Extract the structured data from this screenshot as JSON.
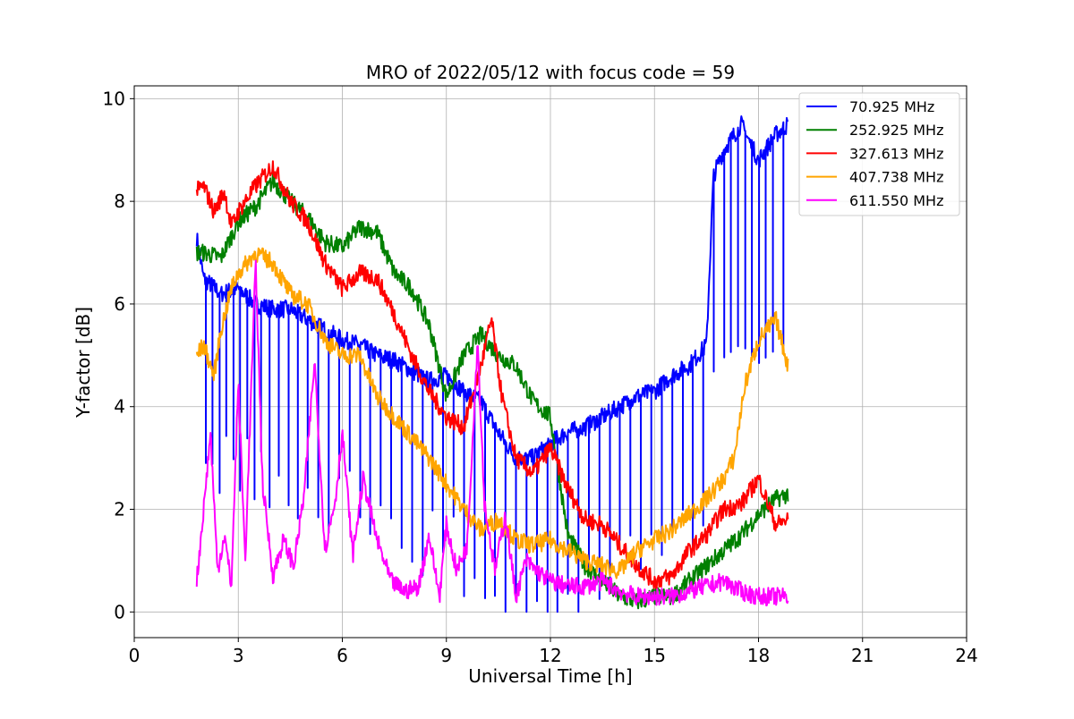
{
  "chart_data": {
    "type": "line",
    "title": "MRO of 2022/05/12 with focus code = 59",
    "xlabel": "Universal Time [h]",
    "ylabel": "Y-factor [dB]",
    "xlim": [
      0,
      24
    ],
    "ylim": [
      -0.5,
      10.25
    ],
    "xticks": [
      0,
      3,
      6,
      9,
      12,
      15,
      18,
      21,
      24
    ],
    "yticks": [
      0,
      2,
      4,
      6,
      8,
      10
    ],
    "grid": true,
    "legend_position": "top-right",
    "series": [
      {
        "name": " 70.925 MHz",
        "color": "#0000ff",
        "x": [
          1.8,
          2.0,
          2.5,
          3.0,
          3.5,
          4.0,
          4.5,
          5.0,
          5.5,
          6.0,
          6.5,
          7.0,
          7.5,
          8.0,
          8.5,
          9.0,
          9.5,
          10.0,
          10.5,
          11.0,
          11.5,
          12.0,
          12.5,
          13.0,
          13.5,
          14.0,
          14.5,
          15.0,
          15.5,
          16.0,
          16.5,
          16.7,
          17.0,
          17.5,
          18.0,
          18.5,
          18.85
        ],
        "y": [
          7.3,
          6.5,
          6.2,
          6.3,
          6.0,
          5.9,
          5.9,
          5.7,
          5.5,
          5.3,
          5.2,
          5.0,
          4.9,
          4.7,
          4.5,
          4.6,
          4.3,
          4.1,
          3.5,
          3.0,
          3.0,
          3.3,
          3.5,
          3.6,
          3.8,
          4.0,
          4.2,
          4.3,
          4.6,
          4.8,
          5.2,
          8.5,
          9.0,
          9.5,
          8.8,
          9.3,
          9.5
        ],
        "dips": [
          2.05,
          2.25,
          2.45,
          2.65,
          2.85,
          3.05,
          3.25,
          3.45,
          3.65,
          3.9,
          4.15,
          4.45,
          4.7,
          5.0,
          5.3,
          5.6,
          5.9,
          6.2,
          6.5,
          6.8,
          7.1,
          7.4,
          7.7,
          8.0,
          8.3,
          8.6,
          8.9,
          9.2,
          9.5,
          9.8,
          10.1,
          10.4,
          10.7,
          11.0,
          11.3,
          11.6,
          11.9,
          12.2,
          12.5,
          12.8,
          13.1,
          13.4,
          13.7,
          14.0,
          14.3,
          14.6,
          14.9,
          15.2,
          15.5,
          15.8,
          16.1,
          16.4,
          16.7,
          17.0,
          17.2,
          17.4,
          17.6,
          17.8,
          18.0,
          18.2,
          18.4,
          18.7
        ]
      },
      {
        "name": "252.925 MHz",
        "color": "#008000",
        "x": [
          1.8,
          2.0,
          2.5,
          3.0,
          3.5,
          4.0,
          4.5,
          5.0,
          5.5,
          6.0,
          6.5,
          7.0,
          7.5,
          8.0,
          8.5,
          9.0,
          9.5,
          10.0,
          10.5,
          11.0,
          11.5,
          12.0,
          12.5,
          13.0,
          13.5,
          14.0,
          14.5,
          15.0,
          15.5,
          16.0,
          16.5,
          17.0,
          17.5,
          18.0,
          18.5,
          18.85
        ],
        "y": [
          7.0,
          7.0,
          6.9,
          7.6,
          7.9,
          8.4,
          8.0,
          7.7,
          7.2,
          7.1,
          7.5,
          7.4,
          6.6,
          6.3,
          5.6,
          4.2,
          5.0,
          5.4,
          5.0,
          4.8,
          4.1,
          3.8,
          1.5,
          0.9,
          0.6,
          0.3,
          0.2,
          0.3,
          0.3,
          0.6,
          0.9,
          1.2,
          1.5,
          1.9,
          2.2,
          2.3
        ]
      },
      {
        "name": "327.613 MHz",
        "color": "#ff0000",
        "x": [
          1.8,
          2.0,
          2.3,
          2.6,
          2.8,
          3.0,
          3.5,
          4.0,
          4.5,
          5.0,
          5.5,
          6.0,
          6.5,
          7.0,
          7.5,
          8.0,
          8.5,
          9.0,
          9.5,
          10.0,
          10.3,
          10.6,
          11.0,
          11.5,
          12.0,
          12.5,
          13.0,
          13.5,
          14.0,
          14.5,
          15.0,
          15.5,
          16.0,
          16.5,
          17.0,
          17.5,
          18.0,
          18.5,
          18.85
        ],
        "y": [
          8.2,
          8.3,
          7.8,
          8.2,
          7.5,
          7.8,
          8.3,
          8.7,
          8.0,
          7.6,
          6.8,
          6.3,
          6.6,
          6.5,
          5.8,
          5.0,
          4.3,
          3.8,
          3.6,
          4.8,
          5.7,
          4.2,
          3.0,
          2.7,
          3.2,
          2.4,
          1.8,
          1.7,
          1.3,
          0.9,
          0.6,
          0.7,
          1.2,
          1.5,
          2.0,
          2.1,
          2.6,
          1.7,
          1.8
        ]
      },
      {
        "name": "407.738 MHz",
        "color": "#ffa500",
        "x": [
          1.8,
          2.0,
          2.3,
          2.5,
          2.8,
          3.0,
          3.5,
          4.0,
          4.5,
          5.0,
          5.5,
          6.0,
          6.5,
          7.0,
          7.5,
          8.0,
          8.5,
          9.0,
          9.5,
          10.0,
          10.5,
          11.0,
          11.5,
          12.0,
          12.5,
          13.0,
          13.5,
          14.0,
          14.5,
          15.0,
          15.5,
          16.0,
          16.5,
          17.0,
          17.3,
          17.6,
          18.0,
          18.5,
          18.85
        ],
        "y": [
          5.0,
          5.2,
          4.6,
          5.5,
          6.3,
          6.6,
          7.0,
          6.8,
          6.2,
          6.0,
          5.3,
          5.0,
          5.0,
          4.2,
          3.8,
          3.4,
          3.0,
          2.5,
          2.0,
          1.6,
          1.8,
          1.4,
          1.3,
          1.4,
          1.2,
          1.0,
          0.9,
          0.8,
          1.2,
          1.4,
          1.6,
          1.9,
          2.2,
          2.6,
          3.0,
          4.4,
          5.3,
          5.7,
          4.8
        ]
      },
      {
        "name": "611.550 MHz",
        "color": "#ff00ff",
        "x": [
          1.8,
          2.0,
          2.2,
          2.4,
          2.6,
          2.8,
          3.0,
          3.2,
          3.5,
          3.7,
          4.0,
          4.3,
          4.6,
          4.9,
          5.2,
          5.5,
          5.8,
          6.0,
          6.3,
          6.6,
          7.0,
          7.4,
          7.8,
          8.2,
          8.5,
          8.8,
          9.0,
          9.3,
          9.6,
          9.9,
          10.1,
          10.4,
          10.7,
          11.0,
          11.3,
          11.6,
          12.0,
          12.5,
          13.0,
          13.5,
          14.0,
          14.5,
          15.0,
          15.5,
          16.0,
          16.5,
          17.0,
          17.5,
          18.0,
          18.5,
          18.85
        ],
        "y": [
          0.6,
          2.0,
          3.5,
          0.8,
          1.5,
          0.5,
          4.5,
          1.0,
          6.8,
          2.5,
          0.7,
          1.4,
          0.9,
          2.3,
          4.9,
          1.2,
          2.2,
          3.5,
          1.1,
          2.6,
          1.4,
          0.6,
          0.4,
          0.5,
          1.5,
          0.3,
          1.7,
          0.8,
          1.3,
          5.3,
          2.1,
          0.8,
          1.9,
          0.3,
          1.0,
          0.8,
          0.6,
          0.5,
          0.5,
          0.6,
          0.4,
          0.3,
          0.3,
          0.3,
          0.4,
          0.5,
          0.6,
          0.4,
          0.3,
          0.3,
          0.3
        ]
      }
    ]
  }
}
